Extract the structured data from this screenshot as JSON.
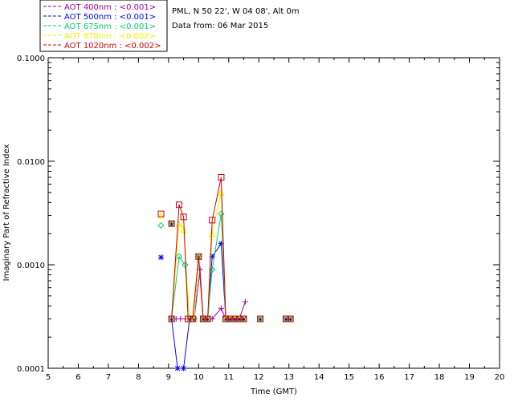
{
  "header": {
    "site": "PML, N 50 22', W 04 08', Alt 0m",
    "date": "Data from: 06 Mar 2015"
  },
  "legend": [
    {
      "text": "AOT  400nm : <0.001>",
      "color": "#a000a0"
    },
    {
      "text": "AOT  500nm : <0.001>",
      "color": "#0000ff"
    },
    {
      "text": "AOT  675nm : <0.001>",
      "color": "#00d070"
    },
    {
      "text": "AOT  870nm : <0.002>",
      "color": "#f0f000"
    },
    {
      "text": "AOT 1020nm : <0.002>",
      "color": "#d00000"
    }
  ],
  "chart_data": {
    "type": "line",
    "title": "",
    "xlabel": "Time (GMT)",
    "ylabel": "Imaginary Part of Refractive Index",
    "xlim": [
      5,
      20
    ],
    "ylim": [
      0.0001,
      0.1
    ],
    "yscale": "log",
    "xticks": [
      "5",
      "6",
      "7",
      "8",
      "9",
      "10",
      "11",
      "12",
      "13",
      "14",
      "15",
      "16",
      "17",
      "18",
      "19",
      "20"
    ],
    "yticks": [
      {
        "value": 0.0001,
        "label": "0.0001"
      },
      {
        "value": 0.001,
        "label": "0.0010"
      },
      {
        "value": 0.01,
        "label": "0.0100"
      },
      {
        "value": 0.1,
        "label": "0.1000"
      }
    ],
    "series": [
      {
        "name": "AOT  400nm",
        "color": "#a000a0",
        "marker": "plus",
        "points": [
          [
            9.1,
            0.0003
          ],
          [
            9.25,
            0.0003
          ],
          [
            9.4,
            0.0003
          ],
          [
            9.55,
            0.0003
          ],
          [
            9.7,
            0.0003
          ],
          [
            9.85,
            0.0003
          ],
          [
            10.05,
            0.0009
          ],
          [
            10.15,
            0.0003
          ],
          [
            10.3,
            0.0003
          ],
          [
            10.45,
            0.0003
          ],
          [
            10.75,
            0.00038
          ],
          [
            10.9,
            0.0003
          ],
          [
            11.05,
            0.0003
          ],
          [
            11.2,
            0.0003
          ],
          [
            11.35,
            0.0003
          ],
          [
            11.55,
            0.00044
          ]
        ],
        "isolated": [
          [
            9.1,
            0.0025
          ],
          [
            12.05,
            0.0003
          ],
          [
            12.9,
            0.0003
          ],
          [
            13.05,
            0.0003
          ]
        ]
      },
      {
        "name": "AOT  500nm",
        "color": "#0000ff",
        "marker": "asterisk",
        "points": [
          [
            9.1,
            0.0003
          ],
          [
            9.3,
            0.0001
          ],
          [
            9.5,
            0.0001
          ],
          [
            9.7,
            0.0003
          ],
          [
            9.85,
            0.0003
          ],
          [
            10.0,
            0.0012
          ],
          [
            10.15,
            0.0003
          ],
          [
            10.3,
            0.0003
          ],
          [
            10.45,
            0.0012
          ],
          [
            10.75,
            0.0016
          ],
          [
            10.9,
            0.0003
          ],
          [
            11.05,
            0.0003
          ],
          [
            11.2,
            0.0003
          ],
          [
            11.35,
            0.0003
          ],
          [
            11.5,
            0.0003
          ]
        ],
        "isolated": [
          [
            8.75,
            0.00118
          ],
          [
            9.1,
            0.0025
          ],
          [
            12.05,
            0.0003
          ],
          [
            12.9,
            0.0003
          ],
          [
            13.05,
            0.0003
          ]
        ]
      },
      {
        "name": "AOT  675nm",
        "color": "#00d070",
        "marker": "diamond",
        "points": [
          [
            9.1,
            0.0003
          ],
          [
            9.35,
            0.0012
          ],
          [
            9.55,
            0.001
          ],
          [
            9.7,
            0.0003
          ],
          [
            9.85,
            0.0003
          ],
          [
            10.0,
            0.0012
          ],
          [
            10.15,
            0.0003
          ],
          [
            10.3,
            0.0003
          ],
          [
            10.45,
            0.0009
          ],
          [
            10.75,
            0.0031
          ],
          [
            10.9,
            0.0003
          ],
          [
            11.05,
            0.0003
          ],
          [
            11.2,
            0.0003
          ],
          [
            11.35,
            0.0003
          ],
          [
            11.5,
            0.0003
          ]
        ],
        "isolated": [
          [
            8.75,
            0.0024
          ],
          [
            9.1,
            0.0025
          ],
          [
            12.05,
            0.0003
          ],
          [
            12.9,
            0.0003
          ],
          [
            13.05,
            0.0003
          ]
        ]
      },
      {
        "name": "AOT  870nm",
        "color": "#f0f000",
        "marker": "triangle",
        "points": [
          [
            9.1,
            0.0003
          ],
          [
            9.35,
            0.0025
          ],
          [
            9.5,
            0.0022
          ],
          [
            9.7,
            0.0003
          ],
          [
            9.85,
            0.0003
          ],
          [
            10.0,
            0.0012
          ],
          [
            10.15,
            0.0003
          ],
          [
            10.3,
            0.0003
          ],
          [
            10.45,
            0.002
          ],
          [
            10.75,
            0.005
          ],
          [
            10.9,
            0.0003
          ],
          [
            11.05,
            0.0003
          ],
          [
            11.2,
            0.0003
          ],
          [
            11.35,
            0.0003
          ],
          [
            11.5,
            0.0003
          ]
        ],
        "isolated": [
          [
            8.75,
            0.003
          ],
          [
            9.1,
            0.0025
          ],
          [
            12.05,
            0.0003
          ],
          [
            12.9,
            0.0003
          ],
          [
            13.05,
            0.0003
          ]
        ]
      },
      {
        "name": "AOT 1020nm",
        "color": "#d00000",
        "marker": "square",
        "points": [
          [
            9.1,
            0.0003
          ],
          [
            9.35,
            0.0038
          ],
          [
            9.5,
            0.0029
          ],
          [
            9.65,
            0.0003
          ],
          [
            9.8,
            0.0003
          ],
          [
            10.0,
            0.0012
          ],
          [
            10.15,
            0.0003
          ],
          [
            10.3,
            0.0003
          ],
          [
            10.45,
            0.0027
          ],
          [
            10.75,
            0.007
          ],
          [
            10.9,
            0.0003
          ],
          [
            11.05,
            0.0003
          ],
          [
            11.2,
            0.0003
          ],
          [
            11.35,
            0.0003
          ],
          [
            11.5,
            0.0003
          ]
        ],
        "isolated": [
          [
            8.75,
            0.0031
          ],
          [
            9.1,
            0.0025
          ],
          [
            12.05,
            0.0003
          ],
          [
            12.9,
            0.0003
          ],
          [
            13.05,
            0.0003
          ]
        ]
      }
    ]
  }
}
